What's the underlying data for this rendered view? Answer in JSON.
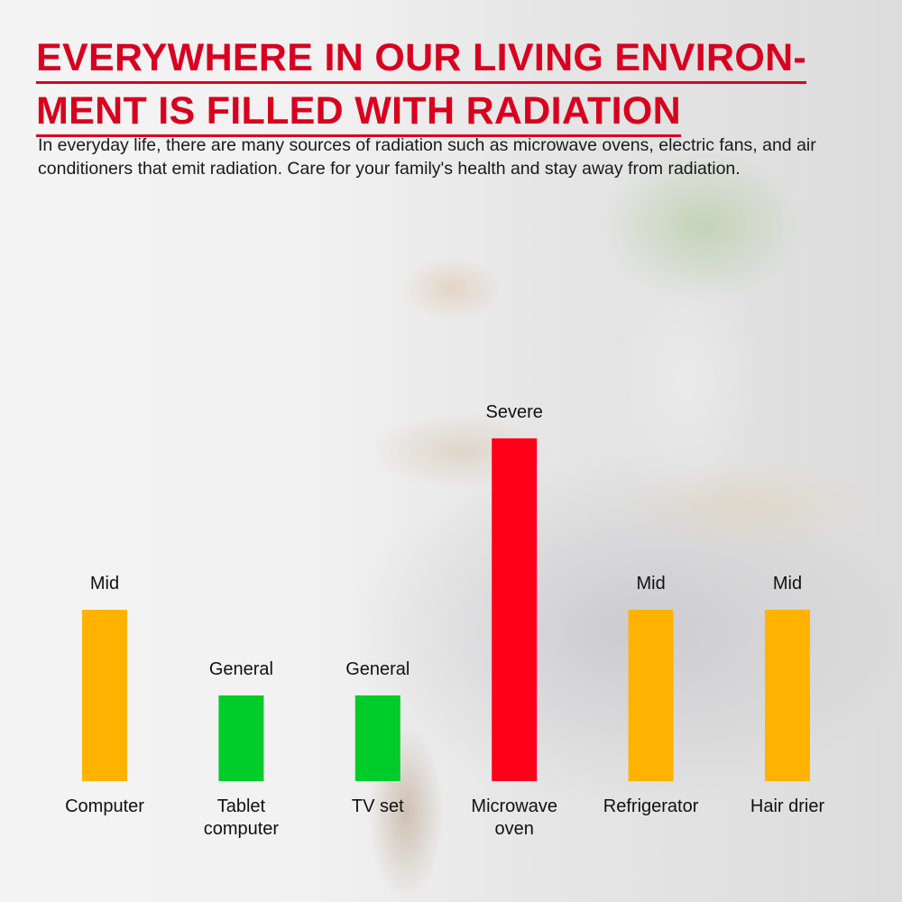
{
  "title_lines": [
    "EVERYWHERE IN OUR LIVING ENVIRON-",
    "MENT IS FILLED WITH RADIATION"
  ],
  "description": "In everyday life, there are many sources of radiation such as microwave ovens, electric fans, and air conditioners that emit radiation. Care for your family's health and stay away from radiation.",
  "colors": {
    "title": "#d8001f",
    "Mid": "#ffb300",
    "General": "#00cc2a",
    "Severe": "#ff0019"
  },
  "chart_data": {
    "type": "bar",
    "categories": [
      [
        "Computer"
      ],
      [
        "Tablet",
        "computer"
      ],
      [
        "TV set"
      ],
      [
        "Microwave",
        "oven"
      ],
      [
        "Refrigerator"
      ],
      [
        "Hair drier"
      ]
    ],
    "values": [
      2,
      1,
      1,
      4,
      2,
      2
    ],
    "data_labels": [
      "Mid",
      "General",
      "General",
      "Severe",
      "Mid",
      "Mid"
    ],
    "ylim": [
      0,
      4
    ],
    "grid": false,
    "axes_visible": false
  }
}
